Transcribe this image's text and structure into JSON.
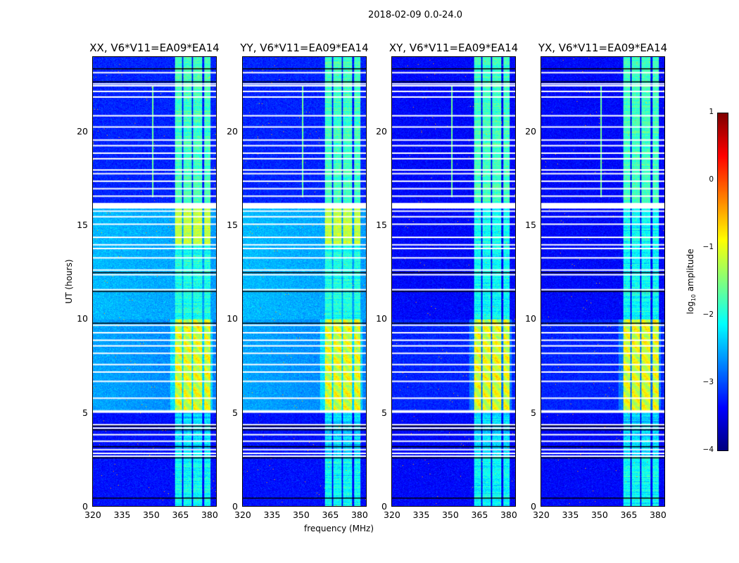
{
  "suptitle": "2018-02-09 0.0-24.0",
  "chart_data": {
    "type": "heatmap",
    "panels": [
      {
        "title": "XX, V6*V11=EA09*EA14",
        "pol": "XX"
      },
      {
        "title": "YY, V6*V11=EA09*EA14",
        "pol": "YY"
      },
      {
        "title": "XY, V6*V11=EA09*EA14",
        "pol": "XY"
      },
      {
        "title": "YX, V6*V11=EA09*EA14",
        "pol": "YX"
      }
    ],
    "xlabel": "frequency (MHz)",
    "ylabel": "UT (hours)",
    "xlim": [
      320,
      384
    ],
    "ylim": [
      0,
      24
    ],
    "xticks": [
      "320",
      "335",
      "350",
      "365",
      "380"
    ],
    "yticks": [
      "0",
      "5",
      "10",
      "15",
      "20"
    ],
    "colorbar": {
      "label": "log10 amplitude",
      "label_main": "log",
      "label_sub": "10",
      "label_rest": " amplitude",
      "range": [
        -4,
        1
      ],
      "ticks": [
        "1",
        "0",
        "−1",
        "−2",
        "−3",
        "−4"
      ],
      "colormap": "jet"
    },
    "bright_bands_mhz": [
      [
        362.5,
        366
      ],
      [
        367,
        371
      ],
      [
        372,
        376.5
      ],
      [
        377.5,
        381
      ]
    ],
    "flagged_hours_white": [
      2.7,
      2.85,
      3.05,
      3.5,
      3.85,
      4.2,
      4.38,
      5.8,
      6.7,
      7.2,
      7.6,
      8.2,
      8.6,
      8.9,
      9.3,
      9.7,
      11.6,
      12.4,
      12.65,
      13.3,
      13.8,
      14.0,
      14.4,
      15.1,
      15.5,
      15.8,
      16.6,
      17.0,
      17.4,
      17.8,
      18.0,
      18.6,
      18.9,
      19.3,
      19.6,
      20.3,
      20.9,
      21.9,
      22.2,
      22.5,
      22.6,
      23.2
    ],
    "flagged_hours_thick": [
      [
        4.98,
        5.12
      ],
      [
        15.9,
        16.2
      ]
    ],
    "black_hours": [
      0.45,
      2.6,
      3.2,
      4.1,
      4.3,
      9.8,
      11.5,
      12.5,
      22.7,
      23.4
    ]
  }
}
